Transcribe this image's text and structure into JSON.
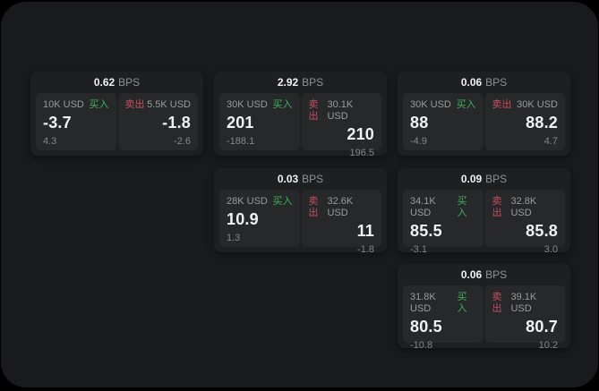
{
  "colors": {
    "screen_bg": "#191a1c",
    "card_bg": "#1e1f21",
    "panel_bg": "#27282a",
    "text_primary": "#f2f2f3",
    "text_label": "#9a9b9e",
    "text_sub": "#85868a",
    "unit_gray": "#8e9093",
    "buy_green": "#3cb35a",
    "sell_red": "#c84e61"
  },
  "cards": [
    {
      "bps": "0.62",
      "unit": "BPS",
      "buy": {
        "amount": "10K USD",
        "side": "买入",
        "value": "-3.7",
        "sub": "4.3"
      },
      "sell": {
        "side": "卖出",
        "amount": "5.5K USD",
        "value": "-1.8",
        "sub": "-2.6"
      }
    },
    {
      "bps": "2.92",
      "unit": "BPS",
      "buy": {
        "amount": "30K USD",
        "side": "买入",
        "value": "201",
        "sub": "-188.1"
      },
      "sell": {
        "side": "卖出",
        "amount": "30.1K USD",
        "value": "210",
        "sub": "196.5"
      }
    },
    {
      "bps": "0.06",
      "unit": "BPS",
      "buy": {
        "amount": "30K USD",
        "side": "买入",
        "value": "88",
        "sub": "-4.9"
      },
      "sell": {
        "side": "卖出",
        "amount": "30K USD",
        "value": "88.2",
        "sub": "4.7"
      }
    },
    {
      "bps": "0.03",
      "unit": "BPS",
      "buy": {
        "amount": "28K USD",
        "side": "买入",
        "value": "10.9",
        "sub": "1.3"
      },
      "sell": {
        "side": "卖出",
        "amount": "32.6K USD",
        "value": "11",
        "sub": "-1.8"
      }
    },
    {
      "bps": "0.09",
      "unit": "BPS",
      "buy": {
        "amount": "34.1K USD",
        "side": "买入",
        "value": "85.5",
        "sub": "-3.1"
      },
      "sell": {
        "side": "卖出",
        "amount": "32.8K USD",
        "value": "85.8",
        "sub": "3.0"
      }
    },
    {
      "bps": "0.06",
      "unit": "BPS",
      "buy": {
        "amount": "31.8K USD",
        "side": "买入",
        "value": "80.5",
        "sub": "-10.8"
      },
      "sell": {
        "side": "卖出",
        "amount": "39.1K USD",
        "value": "80.7",
        "sub": "10.2"
      }
    }
  ]
}
